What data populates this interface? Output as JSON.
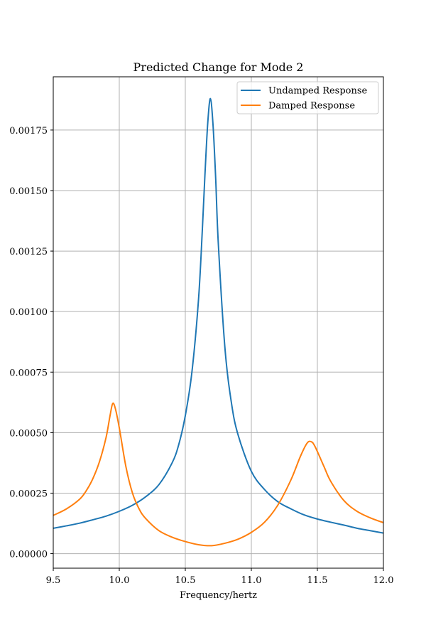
{
  "chart_data": {
    "type": "line",
    "title": "Predicted Change for Mode 2",
    "xlabel": "Frequency/hertz",
    "ylabel": "",
    "xlim": [
      9.5,
      12.0
    ],
    "ylim": [
      -6e-05,
      0.00197
    ],
    "grid": true,
    "legend_position": "top-right",
    "x_ticks": [
      9.5,
      10.0,
      10.5,
      11.0,
      11.5,
      12.0
    ],
    "x_tick_labels": [
      "9.5",
      "10.0",
      "10.5",
      "11.0",
      "11.5",
      "12.0"
    ],
    "y_ticks": [
      0,
      0.00025,
      0.0005,
      0.00075,
      0.001,
      0.00125,
      0.0015,
      0.00175
    ],
    "y_tick_labels": [
      "0.00000",
      "0.00025",
      "0.00050",
      "0.00075",
      "0.00100",
      "0.00125",
      "0.00150",
      "0.00175"
    ],
    "series": [
      {
        "name": "Undamped Response",
        "color": "#1f77b4",
        "points": [
          [
            9.5,
            0.000105
          ],
          [
            9.6,
            0.000115
          ],
          [
            9.7,
            0.000126
          ],
          [
            9.8,
            0.00014
          ],
          [
            9.9,
            0.000155
          ],
          [
            10.0,
            0.000175
          ],
          [
            10.1,
            0.0002
          ],
          [
            10.2,
            0.000235
          ],
          [
            10.3,
            0.000285
          ],
          [
            10.4,
            0.000375
          ],
          [
            10.45,
            0.00045
          ],
          [
            10.5,
            0.00057
          ],
          [
            10.55,
            0.00075
          ],
          [
            10.6,
            0.00105
          ],
          [
            10.63,
            0.00135
          ],
          [
            10.65,
            0.00158
          ],
          [
            10.67,
            0.00178
          ],
          [
            10.69,
            0.00188
          ],
          [
            10.71,
            0.00177
          ],
          [
            10.73,
            0.00155
          ],
          [
            10.75,
            0.00128
          ],
          [
            10.8,
            0.00085
          ],
          [
            10.85,
            0.00062
          ],
          [
            10.9,
            0.00049
          ],
          [
            11.0,
            0.00034
          ],
          [
            11.1,
            0.000265
          ],
          [
            11.2,
            0.000215
          ],
          [
            11.3,
            0.000185
          ],
          [
            11.4,
            0.00016
          ],
          [
            11.5,
            0.000143
          ],
          [
            11.6,
            0.00013
          ],
          [
            11.7,
            0.000118
          ],
          [
            11.8,
            0.000105
          ],
          [
            11.9,
            9.5e-05
          ],
          [
            12.0,
            8.5e-05
          ]
        ]
      },
      {
        "name": "Damped Response",
        "color": "#ff7f0e",
        "points": [
          [
            9.5,
            0.000158
          ],
          [
            9.6,
            0.000185
          ],
          [
            9.7,
            0.000225
          ],
          [
            9.75,
            0.00026
          ],
          [
            9.8,
            0.00031
          ],
          [
            9.85,
            0.00038
          ],
          [
            9.9,
            0.00048
          ],
          [
            9.93,
            0.00057
          ],
          [
            9.95,
            0.00062
          ],
          [
            9.97,
            0.0006
          ],
          [
            10.0,
            0.00052
          ],
          [
            10.05,
            0.00036
          ],
          [
            10.1,
            0.00025
          ],
          [
            10.15,
            0.000185
          ],
          [
            10.2,
            0.000145
          ],
          [
            10.3,
            9.5e-05
          ],
          [
            10.4,
            6.8e-05
          ],
          [
            10.5,
            5e-05
          ],
          [
            10.6,
            3.7e-05
          ],
          [
            10.7,
            3.3e-05
          ],
          [
            10.8,
            4.3e-05
          ],
          [
            10.9,
            6e-05
          ],
          [
            11.0,
            8.8e-05
          ],
          [
            11.1,
            0.00013
          ],
          [
            11.2,
            0.0002
          ],
          [
            11.3,
            0.000305
          ],
          [
            11.37,
            0.0004
          ],
          [
            11.42,
            0.000455
          ],
          [
            11.45,
            0.000463
          ],
          [
            11.48,
            0.000445
          ],
          [
            11.55,
            0.00036
          ],
          [
            11.6,
            0.0003
          ],
          [
            11.7,
            0.00022
          ],
          [
            11.8,
            0.000175
          ],
          [
            11.9,
            0.000148
          ],
          [
            12.0,
            0.000128
          ]
        ]
      }
    ]
  }
}
